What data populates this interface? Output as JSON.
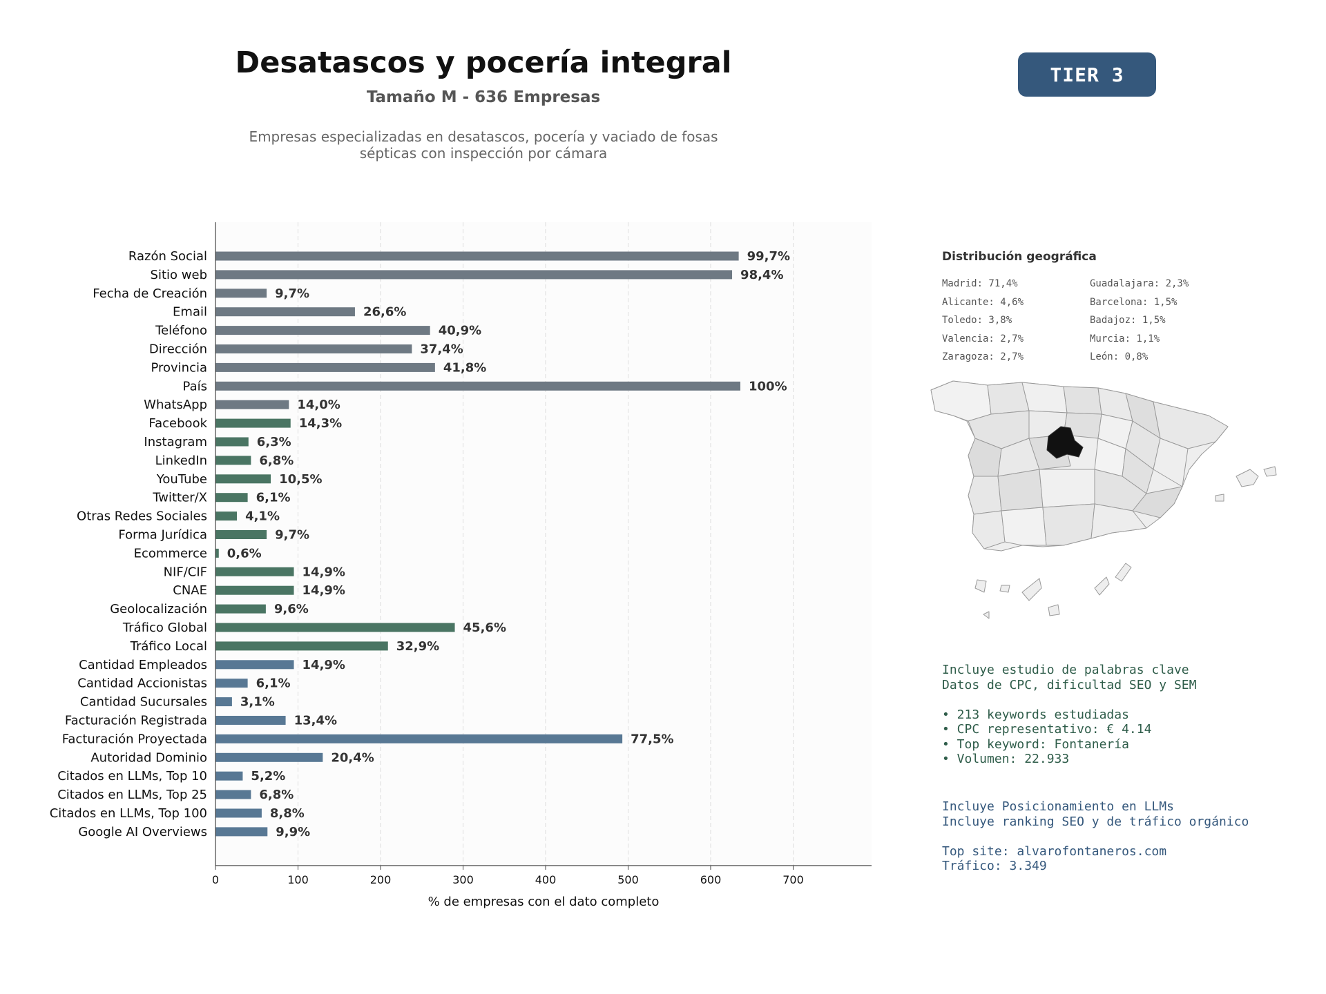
{
  "header": {
    "title": "Desatascos y pocería integral",
    "subtitle": "Tamaño M - 636 Empresas",
    "description_line1": "Empresas especializadas en desatascos, pocería y vaciado de fosas",
    "description_line2": "sépticas con inspección por cámara",
    "tier": "TIER 3"
  },
  "colors": {
    "gray": "#6e7983",
    "green": "#4a7563",
    "blue": "#587894",
    "tier_bg": "#35587c",
    "map_highlight": "#111111",
    "map_region": "#e3e3e3"
  },
  "chart_data": {
    "type": "bar",
    "orientation": "horizontal",
    "xlabel": "% de empresas con el dato completo",
    "xlim": [
      0,
      795
    ],
    "xticks": [
      0,
      100,
      200,
      300,
      400,
      500,
      600,
      700
    ],
    "grid": "vertical dashed",
    "categories": [
      "Razón Social",
      "Sitio web",
      "Fecha de Creación",
      "Email",
      "Teléfono",
      "Dirección",
      "Provincia",
      "País",
      "WhatsApp",
      "Facebook",
      "Instagram",
      "LinkedIn",
      "YouTube",
      "Twitter/X",
      "Otras Redes Sociales",
      "Forma Jurídica",
      "Ecommerce",
      "NIF/CIF",
      "CNAE",
      "Geolocalización",
      "Tráfico Global",
      "Tráfico Local",
      "Cantidad Empleados",
      "Cantidad Accionistas",
      "Cantidad Sucursales",
      "Facturación Registrada",
      "Facturación Proyectada",
      "Autoridad Dominio",
      "Citados en LLMs, Top 10",
      "Citados en LLMs, Top 25",
      "Citados en LLMs, Top 100",
      "Google AI Overviews"
    ],
    "values": [
      634,
      626,
      62,
      169,
      260,
      238,
      266,
      636,
      89,
      91,
      40,
      43,
      67,
      39,
      26,
      62,
      4,
      95,
      95,
      61,
      290,
      209,
      95,
      39,
      20,
      85,
      493,
      130,
      33,
      43,
      56,
      63
    ],
    "labels": [
      "99,7%",
      "98,4%",
      "9,7%",
      "26,6%",
      "40,9%",
      "37,4%",
      "41,8%",
      "100%",
      "14,0%",
      "14,3%",
      "6,3%",
      "6,8%",
      "10,5%",
      "6,1%",
      "4,1%",
      "9,7%",
      "0,6%",
      "14,9%",
      "14,9%",
      "9,6%",
      "45,6%",
      "32,9%",
      "14,9%",
      "6,1%",
      "3,1%",
      "13,4%",
      "77,5%",
      "20,4%",
      "5,2%",
      "6,8%",
      "8,8%",
      "9,9%"
    ],
    "groups": [
      "gray",
      "gray",
      "gray",
      "gray",
      "gray",
      "gray",
      "gray",
      "gray",
      "gray",
      "green",
      "green",
      "green",
      "green",
      "green",
      "green",
      "green",
      "green",
      "green",
      "green",
      "green",
      "green",
      "green",
      "blue",
      "blue",
      "blue",
      "blue",
      "blue",
      "blue",
      "blue",
      "blue",
      "blue",
      "blue"
    ]
  },
  "geo": {
    "title": "Distribución geográfica",
    "entries": [
      "Madrid: 71,4%",
      "Guadalajara: 2,3%",
      "Alicante: 4,6%",
      "Barcelona: 1,5%",
      "Toledo: 3,8%",
      "Badajoz: 1,5%",
      "Valencia: 2,7%",
      "Murcia: 1,1%",
      "Zaragoza: 2,7%",
      "León: 0,8%"
    ]
  },
  "keywords": {
    "line1": "Incluye estudio de palabras clave",
    "line2": "Datos de CPC, dificultad SEO y SEM",
    "bullet1": "• 213 keywords estudiadas",
    "bullet2": "• CPC representativo: € 4.14",
    "bullet3": "• Top keyword: Fontanería",
    "bullet4": "• Volumen: 22.933"
  },
  "llm": {
    "line1": "Incluye Posicionamiento en LLMs",
    "line2": "Incluye ranking SEO y de tráfico orgánico",
    "top_site": "Top site: alvarofontaneros.com",
    "traffic": "Tráfico: 3.349"
  }
}
